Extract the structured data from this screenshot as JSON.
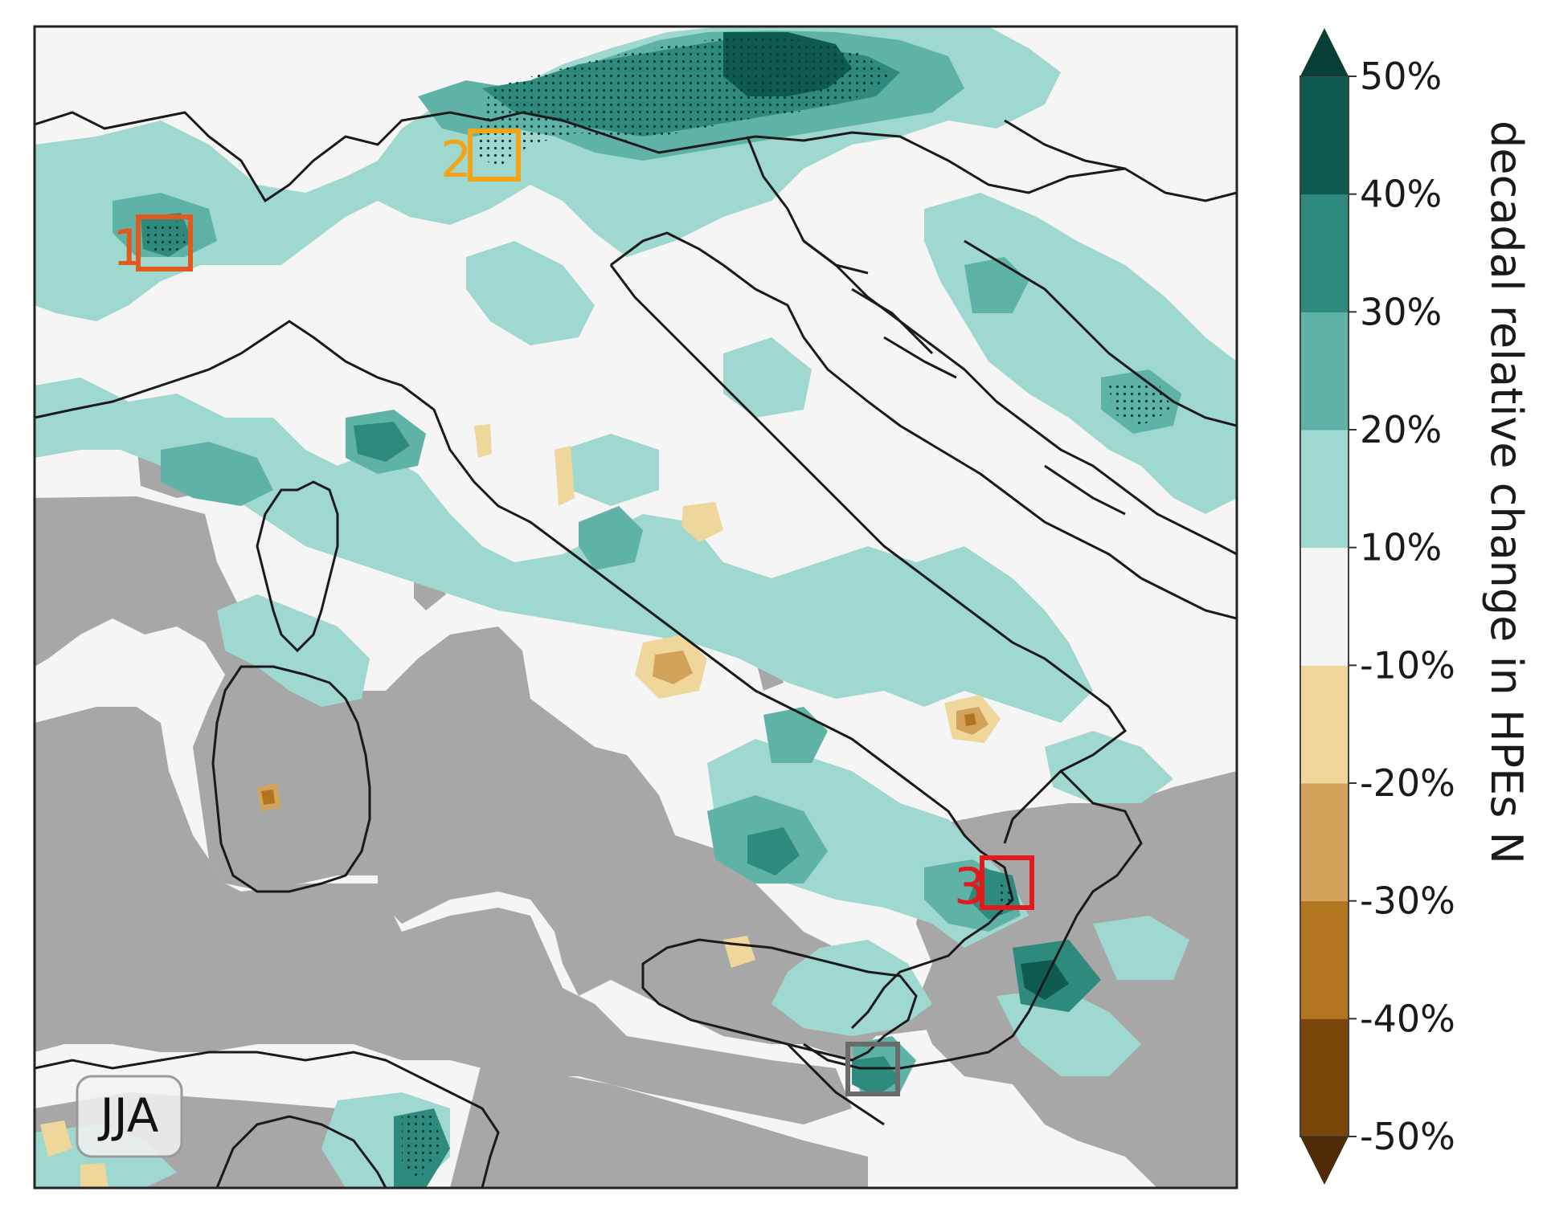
{
  "map": {
    "season_label": "JJA",
    "colors": {
      "masked_gray": "#a7a7a7",
      "near_zero": "#f5f5f5",
      "pos_10_20": "#9fd8ce",
      "pos_20_30": "#5eb3a6",
      "pos_30_40": "#2f8a7e",
      "pos_40_50": "#0f5b50",
      "neg_10_20": "#efd69b",
      "neg_20_30": "#d3a25b",
      "neg_30_40": "#b1741f",
      "neg_40_50": "#7a4508",
      "coastline": "#1a1a1a"
    },
    "boxes": [
      {
        "label": "1",
        "color": "#e05a1e"
      },
      {
        "label": "2",
        "color": "#f2a51a"
      },
      {
        "label": "3",
        "color": "#e3191b"
      },
      {
        "label": "",
        "color": "#6b6b6b"
      }
    ]
  },
  "colorbar": {
    "title": "decadal relative change in HPEs N",
    "ticks": [
      "50%",
      "40%",
      "30%",
      "20%",
      "10%",
      "-10%",
      "-20%",
      "-30%",
      "-40%",
      "-50%"
    ],
    "bins": [
      "#7a4508",
      "#b1741f",
      "#d3a25b",
      "#efd69b",
      "#f5f5f5",
      "#9fd8ce",
      "#5eb3a6",
      "#2f8a7e",
      "#0f5b50"
    ],
    "extend_min_color": "#4f2a06",
    "extend_max_color": "#083f37"
  }
}
